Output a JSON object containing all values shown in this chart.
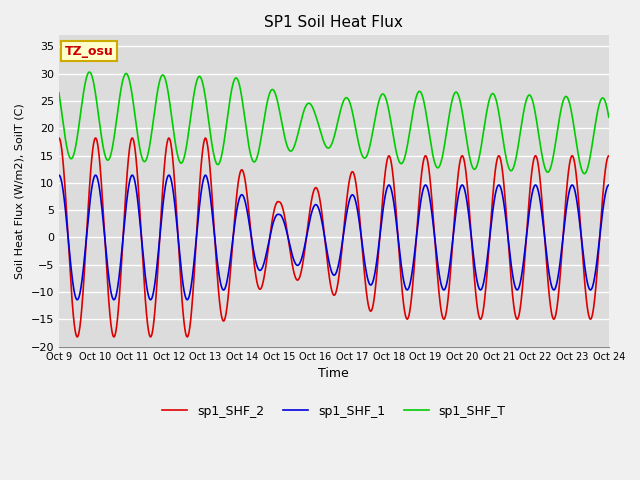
{
  "title": "SP1 Soil Heat Flux",
  "xlabel": "Time",
  "ylabel": "Soil Heat Flux (W/m2), SoilT (C)",
  "xlim_start": 0,
  "xlim_end": 360,
  "ylim": [
    -20,
    37
  ],
  "yticks": [
    -20,
    -15,
    -10,
    -5,
    0,
    5,
    10,
    15,
    20,
    25,
    30,
    35
  ],
  "bg_color": "#f0f0f0",
  "plot_bg_color": "#dcdcdc",
  "grid_color": "#ffffff",
  "line_colors": {
    "sp1_SHF_2": "#dd0000",
    "sp1_SHF_1": "#0000dd",
    "sp1_SHF_T": "#00cc00"
  },
  "xtick_labels": [
    "Oct 9",
    "Oct 10",
    "Oct 11",
    "Oct 12",
    "Oct 13",
    "Oct 14",
    "Oct 15",
    "Oct 16",
    "Oct 17",
    "Oct 18",
    "Oct 19",
    "Oct 20",
    "Oct 21",
    "Oct 22",
    "Oct 23",
    "Oct 24"
  ],
  "xtick_positions": [
    0,
    24,
    48,
    72,
    96,
    120,
    144,
    168,
    192,
    216,
    240,
    264,
    288,
    312,
    336,
    360
  ],
  "legend_label_2": "sp1_SHF_2",
  "legend_label_1": "sp1_SHF_1",
  "legend_label_T": "sp1_SHF_T",
  "annotation_text": "TZ_osu",
  "annotation_bg": "#ffffcc",
  "annotation_border": "#ccaa00",
  "annotation_text_color": "#cc0000",
  "figsize": [
    6.4,
    4.8
  ],
  "dpi": 100
}
